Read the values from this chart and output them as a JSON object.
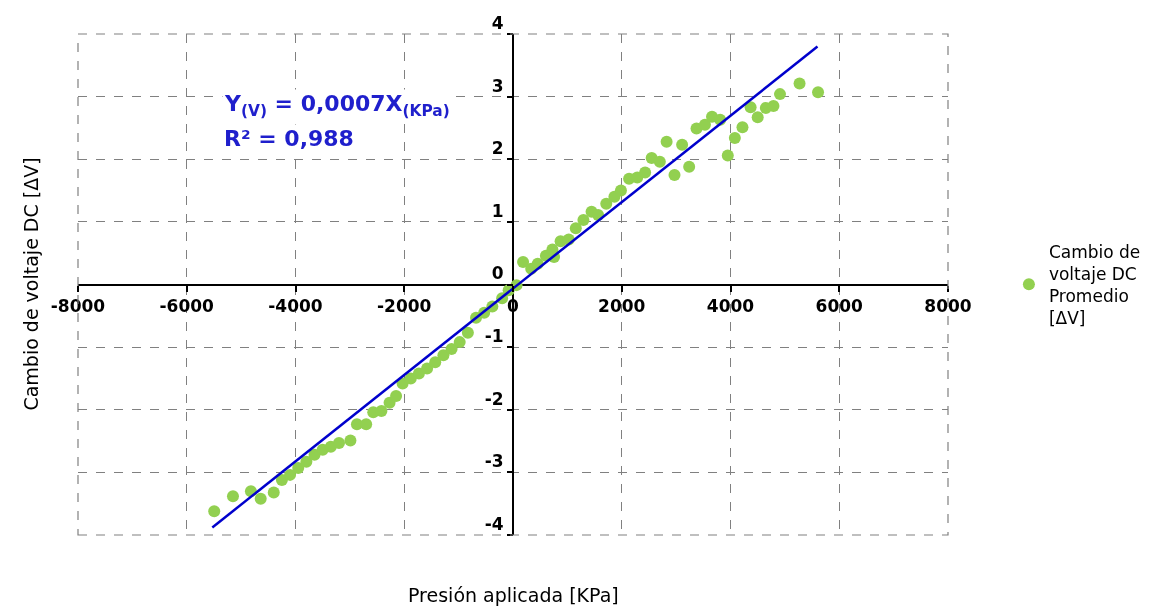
{
  "chart_data": {
    "type": "scatter",
    "xlabel": "Presión aplicada [KPa]",
    "ylabel": "Cambio de voltaje DC [ΔV]",
    "annotations": [
      "Y$_{(V)}$ = 0,0007X$_{(KPa)}$",
      "R² = 0,988"
    ],
    "series": [
      {
        "name": "Cambio de voltaje DC Promedio [ΔV]",
        "color": "#92d050",
        "marker": "circle",
        "x": [
          -5495,
          -5150,
          -4820,
          -4640,
          -4400,
          -4250,
          -4100,
          -3950,
          -3800,
          -3650,
          -3500,
          -3350,
          -3200,
          -2990,
          -2870,
          -2700,
          -2570,
          -2420,
          -2270,
          -2150,
          -2030,
          -1880,
          -1730,
          -1580,
          -1430,
          -1280,
          -1130,
          -980,
          -830,
          -680,
          -530,
          -380,
          -200,
          -80,
          65,
          185,
          335,
          455,
          605,
          725,
          755,
          875,
          1025,
          1155,
          1295,
          1445,
          1565,
          1715,
          1865,
          1985,
          2135,
          2285,
          2430,
          2550,
          2700,
          2825,
          2970,
          3110,
          3240,
          3375,
          3530,
          3660,
          3810,
          3950,
          4080,
          4220,
          4370,
          4500,
          4650,
          4790,
          4910,
          5270,
          5610
        ],
        "values": [
          -3.62,
          -3.38,
          -3.3,
          -3.42,
          -3.32,
          -3.12,
          -3.04,
          -2.93,
          -2.83,
          -2.72,
          -2.64,
          -2.59,
          -2.53,
          -2.49,
          -2.23,
          -2.23,
          -2.04,
          -2.02,
          -1.89,
          -1.78,
          -1.58,
          -1.5,
          -1.42,
          -1.34,
          -1.24,
          -1.13,
          -1.03,
          -0.92,
          -0.77,
          -0.53,
          -0.45,
          -0.35,
          -0.22,
          -0.09,
          -0.01,
          0.36,
          0.25,
          0.33,
          0.46,
          0.56,
          0.44,
          0.69,
          0.72,
          0.9,
          1.03,
          1.16,
          1.11,
          1.29,
          1.4,
          1.5,
          1.69,
          1.71,
          1.79,
          2.02,
          1.96,
          2.28,
          1.75,
          2.23,
          1.88,
          2.49,
          2.55,
          2.68,
          2.63,
          2.06,
          2.34,
          2.51,
          2.83,
          2.67,
          2.82,
          2.85,
          3.04,
          3.21,
          3.07
        ]
      },
      {
        "type": "line",
        "color": "#0000cc",
        "line_style": "solid",
        "x": [
          -5530,
          5600
        ],
        "values": [
          -3.88,
          3.8
        ]
      }
    ],
    "xlim": [
      -8000,
      8000
    ],
    "xticks": [
      -8000,
      -6000,
      -4000,
      -2000,
      0,
      2000,
      4000,
      6000,
      8000
    ],
    "ylim": [
      -4,
      4
    ],
    "yticks": [
      -4,
      -3,
      -2,
      -1,
      0,
      1,
      2,
      3,
      4
    ],
    "grid": true,
    "legend": "right"
  }
}
